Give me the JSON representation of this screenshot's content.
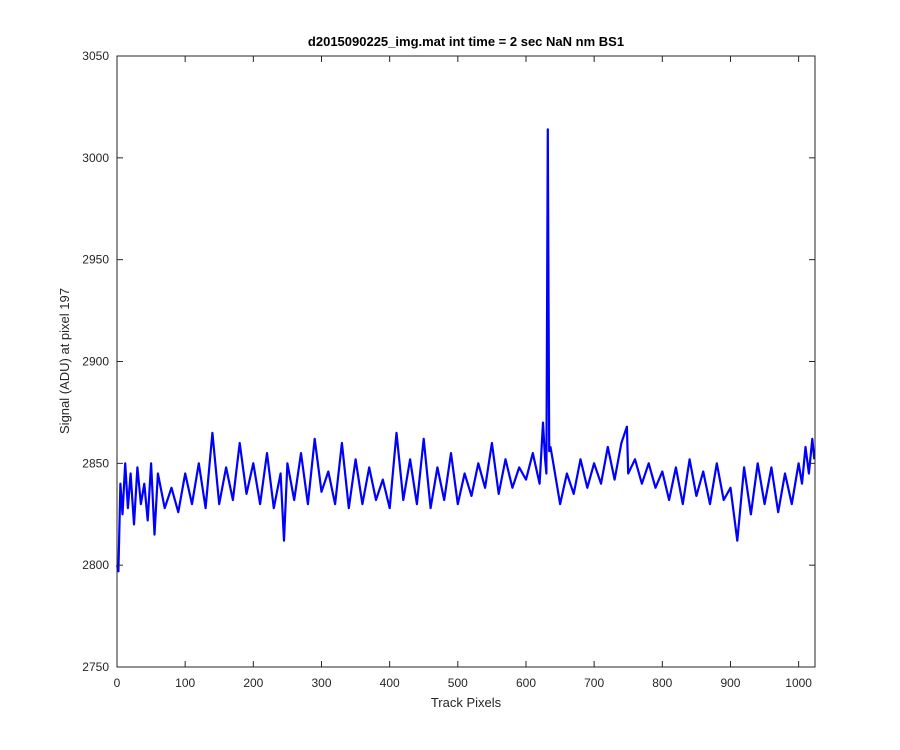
{
  "chart_data": {
    "type": "line",
    "title": "d2015090225_img.mat int time = 2 sec  NaN nm BS1",
    "xlabel": "Track Pixels",
    "ylabel": "Signal (ADU) at pixel 197",
    "xlim": [
      0,
      1024
    ],
    "ylim": [
      2750,
      3050
    ],
    "xticks": [
      0,
      100,
      200,
      300,
      400,
      500,
      600,
      700,
      800,
      900,
      1000
    ],
    "yticks": [
      2750,
      2800,
      2850,
      2900,
      2950,
      3000,
      3050
    ],
    "grid": false,
    "legend": "none",
    "series": [
      {
        "color": "#0000ff",
        "x": [
          0,
          2,
          5,
          8,
          12,
          16,
          20,
          25,
          30,
          35,
          40,
          45,
          50,
          55,
          60,
          70,
          80,
          90,
          100,
          110,
          120,
          130,
          140,
          150,
          160,
          170,
          180,
          190,
          200,
          210,
          220,
          230,
          240,
          245,
          250,
          260,
          270,
          280,
          290,
          300,
          310,
          320,
          330,
          340,
          350,
          360,
          370,
          380,
          390,
          400,
          410,
          420,
          430,
          440,
          450,
          460,
          470,
          480,
          490,
          500,
          510,
          520,
          530,
          540,
          550,
          560,
          570,
          580,
          590,
          600,
          610,
          620,
          625,
          628,
          630,
          632,
          634,
          636,
          640,
          650,
          660,
          670,
          680,
          690,
          700,
          710,
          720,
          730,
          740,
          748,
          750,
          760,
          770,
          780,
          790,
          800,
          810,
          820,
          830,
          840,
          850,
          860,
          870,
          880,
          890,
          900,
          910,
          920,
          930,
          940,
          950,
          960,
          970,
          980,
          990,
          1000,
          1005,
          1010,
          1015,
          1020,
          1023
        ],
        "y": [
          2800,
          2797,
          2840,
          2825,
          2850,
          2828,
          2845,
          2820,
          2848,
          2830,
          2840,
          2822,
          2850,
          2815,
          2845,
          2828,
          2838,
          2826,
          2845,
          2830,
          2850,
          2828,
          2865,
          2830,
          2848,
          2832,
          2860,
          2835,
          2850,
          2830,
          2855,
          2828,
          2845,
          2812,
          2850,
          2832,
          2855,
          2830,
          2862,
          2836,
          2846,
          2830,
          2860,
          2828,
          2852,
          2830,
          2848,
          2832,
          2842,
          2828,
          2865,
          2832,
          2852,
          2830,
          2862,
          2828,
          2848,
          2832,
          2855,
          2830,
          2845,
          2834,
          2850,
          2838,
          2860,
          2835,
          2852,
          2838,
          2848,
          2842,
          2855,
          2840,
          2870,
          2852,
          2845,
          3014,
          2856,
          2858,
          2850,
          2830,
          2845,
          2835,
          2852,
          2838,
          2850,
          2840,
          2858,
          2842,
          2860,
          2868,
          2845,
          2852,
          2840,
          2850,
          2838,
          2846,
          2832,
          2848,
          2830,
          2852,
          2834,
          2846,
          2830,
          2850,
          2832,
          2838,
          2812,
          2848,
          2825,
          2850,
          2830,
          2848,
          2826,
          2845,
          2830,
          2850,
          2840,
          2858,
          2845,
          2862,
          2852
        ]
      }
    ]
  }
}
